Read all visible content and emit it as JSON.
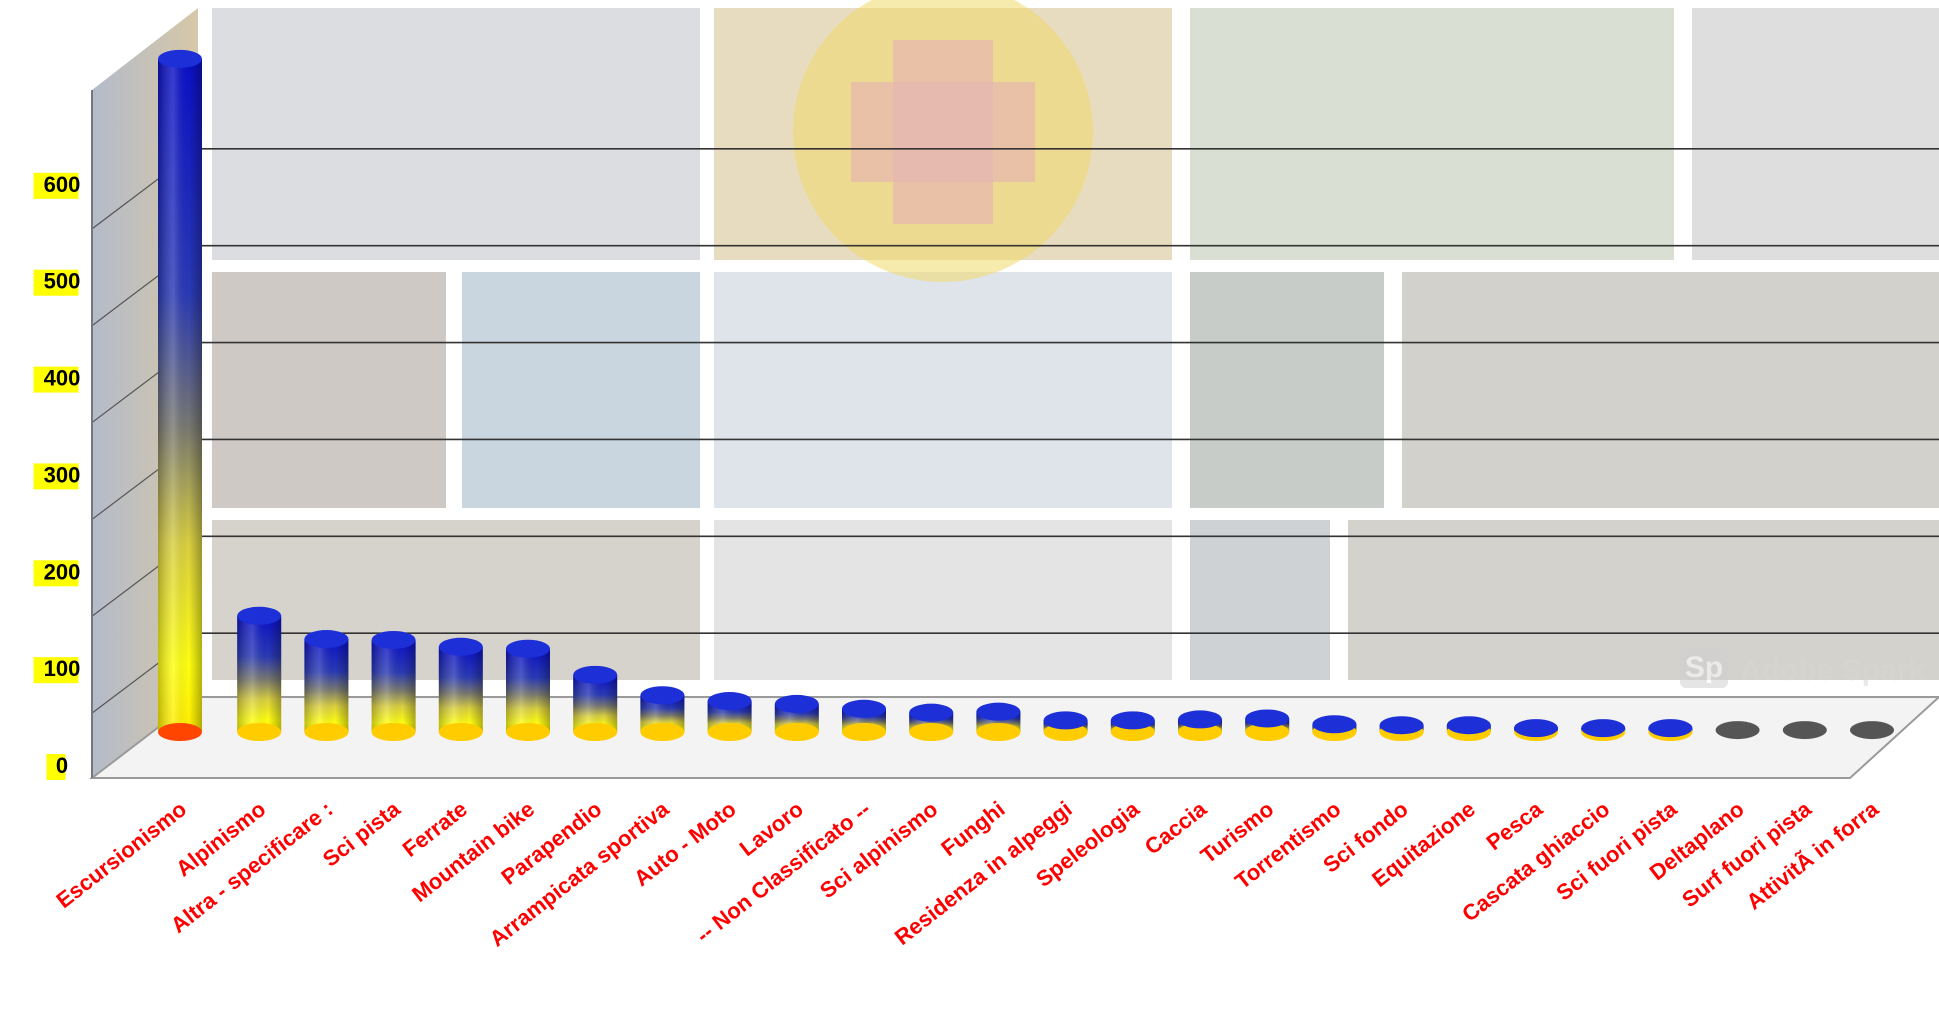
{
  "chart_data": {
    "type": "bar",
    "style": "3d-cylinder",
    "title": "",
    "xlabel": "",
    "ylabel": "",
    "categories": [
      "Escursionismo",
      "Alpinismo",
      "Altra - specificare :",
      "Sci pista",
      "Ferrate",
      "Mountain bike",
      "Parapendio",
      "Arrampicata sportiva",
      "Auto - Moto",
      "Lavoro",
      "-- Non Classificato --",
      "Sci alpinismo",
      "Funghi",
      "Residenza in alpeggi",
      "Speleologia",
      "Caccia",
      "Turismo",
      "Torrentismo",
      "Sci fondo",
      "Equitazione",
      "Pesca",
      "Cascata ghiaccio",
      "Sci fuori pista",
      "Deltaplano",
      "Surf fuori pista",
      "AttivitÃ  in forra"
    ],
    "values": [
      695,
      120,
      96,
      95,
      88,
      86,
      59,
      38,
      32,
      29,
      24,
      20,
      21,
      12,
      12,
      13,
      14,
      8,
      7,
      7,
      4,
      4,
      4,
      2,
      2,
      2
    ],
    "ylim": [
      0,
      700
    ],
    "yticks": [
      0,
      100,
      200,
      300,
      400,
      500,
      600
    ],
    "grid": true,
    "legend": "none",
    "colors": {
      "bar_top": "#1a1aa0",
      "bar_bottom": "#ffff00",
      "bar_base": "#ff4500",
      "cap": "#1d2fd6",
      "cap_small": "#555555",
      "xtick": "#ff0000",
      "ytick_highlight": "#ffff00",
      "grid": "#333333"
    }
  },
  "watermark": {
    "text": "Adobe Spark",
    "badge": "Sp"
  }
}
